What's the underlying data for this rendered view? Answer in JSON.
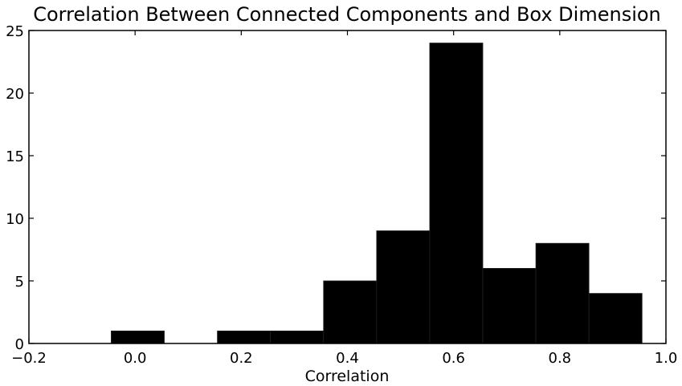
{
  "chart_data": {
    "type": "bar",
    "title": "Correlation Between Connected Components and Box Dimension",
    "xlabel": "Correlation",
    "ylabel": "",
    "xlim": [
      -0.2,
      1.0
    ],
    "ylim": [
      0,
      25
    ],
    "x_ticks": [
      -0.2,
      0.0,
      0.2,
      0.4,
      0.6,
      0.8,
      1.0
    ],
    "x_tick_labels": [
      "−0.2",
      "0.0",
      "0.2",
      "0.4",
      "0.6",
      "0.8",
      "1.0"
    ],
    "y_ticks": [
      0,
      5,
      10,
      15,
      20,
      25
    ],
    "y_tick_labels": [
      "0",
      "5",
      "10",
      "15",
      "20",
      "25"
    ],
    "bins": [
      {
        "x0": -0.045,
        "x1": 0.055,
        "value": 1
      },
      {
        "x0": 0.055,
        "x1": 0.155,
        "value": 0
      },
      {
        "x0": 0.155,
        "x1": 0.255,
        "value": 1
      },
      {
        "x0": 0.255,
        "x1": 0.355,
        "value": 1
      },
      {
        "x0": 0.355,
        "x1": 0.455,
        "value": 5
      },
      {
        "x0": 0.455,
        "x1": 0.555,
        "value": 9
      },
      {
        "x0": 0.555,
        "x1": 0.655,
        "value": 24
      },
      {
        "x0": 0.655,
        "x1": 0.755,
        "value": 6
      },
      {
        "x0": 0.755,
        "x1": 0.855,
        "value": 8
      },
      {
        "x0": 0.855,
        "x1": 0.955,
        "value": 4
      }
    ],
    "bar_color": "#000000",
    "grid": false,
    "legend": "none"
  }
}
